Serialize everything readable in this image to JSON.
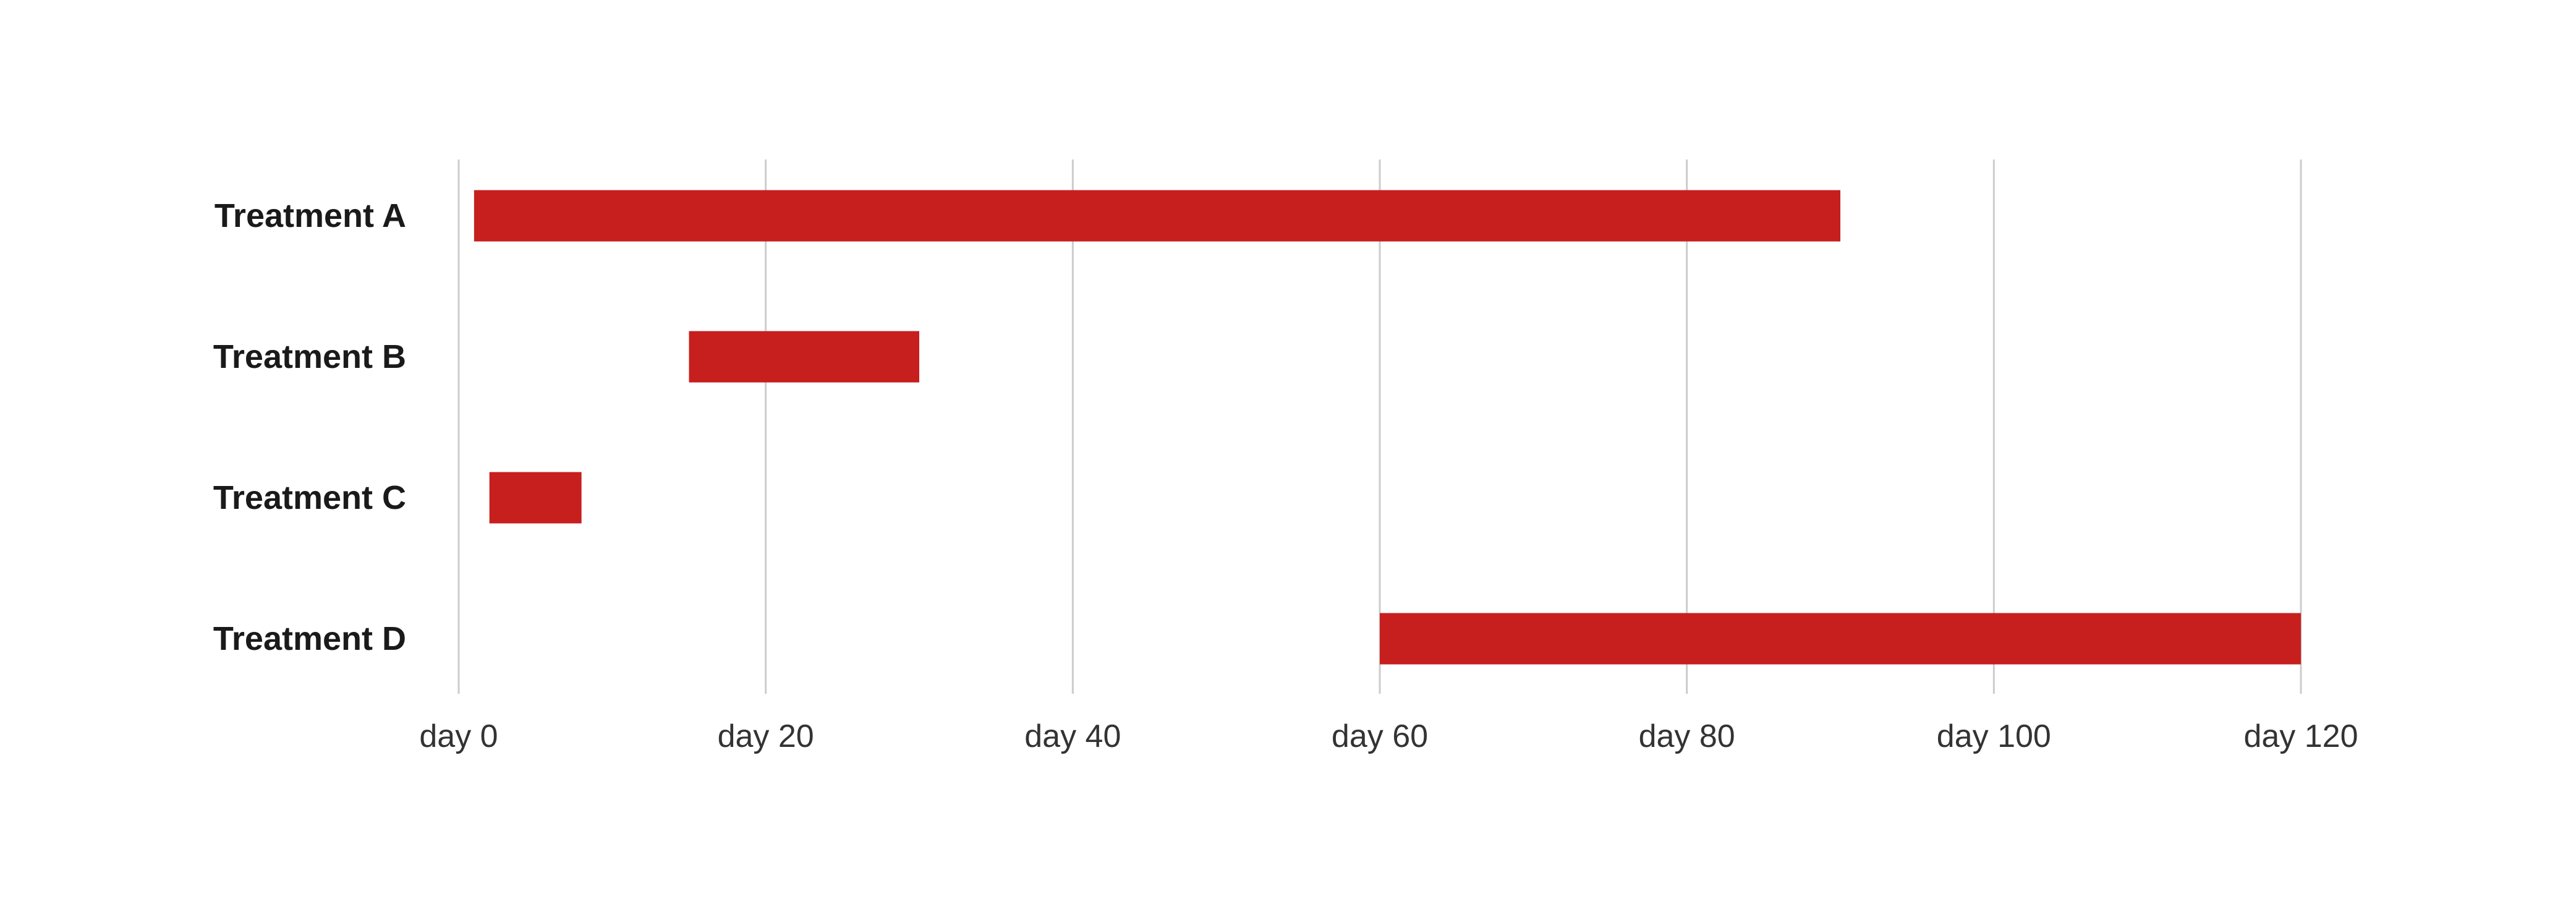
{
  "chart_data": {
    "type": "bar",
    "orientation": "horizontal",
    "subtype": "range",
    "categories": [
      "Treatment A",
      "Treatment B",
      "Treatment C",
      "Treatment D"
    ],
    "ranges": [
      {
        "category": "Treatment A",
        "start": 1,
        "end": 90
      },
      {
        "category": "Treatment B",
        "start": 15,
        "end": 30
      },
      {
        "category": "Treatment C",
        "start": 2,
        "end": 8
      },
      {
        "category": "Treatment D",
        "start": 60,
        "end": 120
      }
    ],
    "x_ticks": [
      0,
      20,
      40,
      60,
      80,
      100,
      120
    ],
    "x_tick_labels": [
      "day 0",
      "day 20",
      "day 40",
      "day 60",
      "day 80",
      "day 100",
      "day 120"
    ],
    "xlim": [
      0,
      120
    ],
    "grid": {
      "x": true,
      "y": false
    },
    "bar_color": "#c71e1e",
    "grid_color": "#cccccc"
  }
}
